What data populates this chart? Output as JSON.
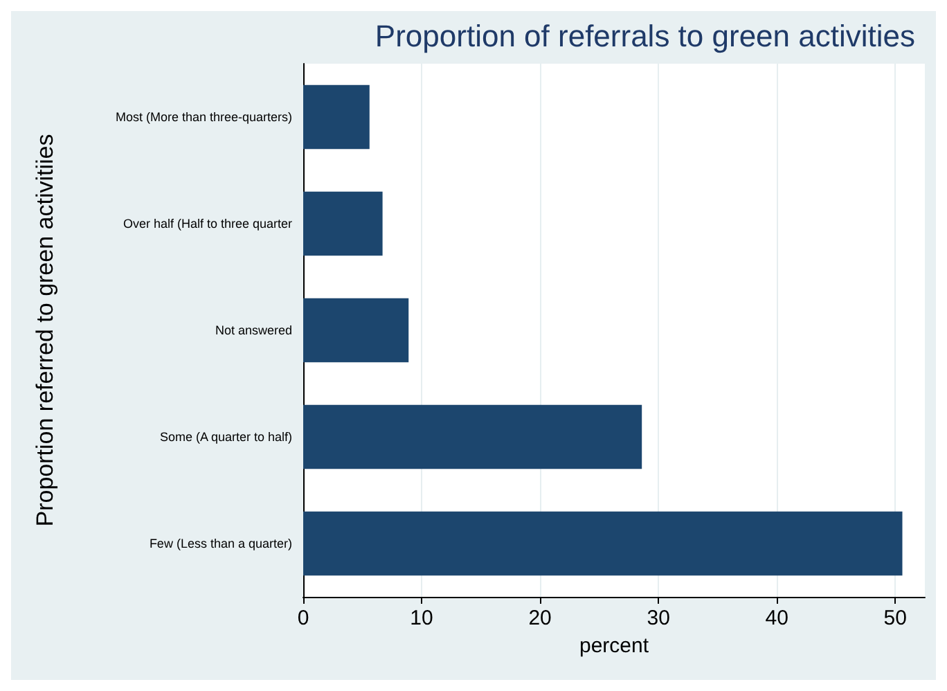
{
  "chart_data": {
    "type": "bar",
    "orientation": "horizontal",
    "title": "Proportion of referrals to green activities",
    "xlabel": "percent",
    "ylabel": "Proportion referred to green activitiies",
    "categories": [
      "Most (More than three-quarters)",
      "Over half (Half to three quarter",
      "Not answered",
      "Some (A quarter to half)",
      "Few (Less than a quarter)"
    ],
    "values": [
      5.6,
      6.7,
      8.9,
      28.6,
      50.6
    ],
    "color": "#1c466e",
    "xlim": [
      0,
      52.5
    ],
    "xticks": [
      0,
      10,
      20,
      30,
      40,
      50
    ],
    "grid": "x"
  }
}
